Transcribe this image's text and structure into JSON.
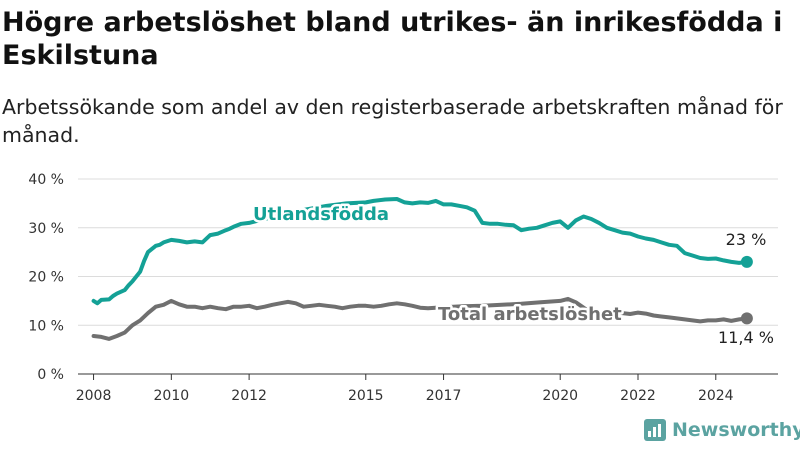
{
  "title": "Högre arbetslöshet bland utrikes- än inrikesfödda i Eskilstuna",
  "subtitle": "Arbetssökande som andel av den registerbaserade arbetskraften månad för månad.",
  "brand": "Newsworthy",
  "colors": {
    "utrikes": "#14a196",
    "total": "#707070",
    "brand": "#5ba3a1",
    "grid": "#dcdcdc"
  },
  "chart_data": {
    "type": "line",
    "x_unit": "year",
    "xlim": [
      2007.6,
      2025.6
    ],
    "ylim": [
      0,
      40
    ],
    "y_ticks": [
      {
        "v": 0,
        "label": "0 %"
      },
      {
        "v": 10,
        "label": "10 %"
      },
      {
        "v": 20,
        "label": "20 %"
      },
      {
        "v": 30,
        "label": "30 %"
      },
      {
        "v": 40,
        "label": "40 %"
      }
    ],
    "x_ticks": [
      {
        "v": 2008,
        "label": "2008"
      },
      {
        "v": 2010,
        "label": "2010"
      },
      {
        "v": 2012,
        "label": "2012"
      },
      {
        "v": 2015,
        "label": "2015"
      },
      {
        "v": 2017,
        "label": "2017"
      },
      {
        "v": 2020,
        "label": "2020"
      },
      {
        "v": 2022,
        "label": "2022"
      },
      {
        "v": 2024,
        "label": "2024"
      }
    ],
    "grid": true,
    "series": [
      {
        "name": "Utlandsfödda",
        "end_label": "23 %",
        "x": [
          2008.0,
          2008.1,
          2008.2,
          2008.4,
          2008.5,
          2008.6,
          2008.8,
          2008.9,
          2009.0,
          2009.2,
          2009.3,
          2009.4,
          2009.6,
          2009.7,
          2009.8,
          2010.0,
          2010.2,
          2010.4,
          2010.6,
          2010.8,
          2011.0,
          2011.2,
          2011.4,
          2011.5,
          2011.6,
          2011.8,
          2012.0,
          2012.5,
          2013.0,
          2013.5,
          2014.0,
          2014.5,
          2015.0,
          2015.2,
          2015.5,
          2015.8,
          2016.0,
          2016.2,
          2016.4,
          2016.6,
          2016.8,
          2017.0,
          2017.2,
          2017.4,
          2017.6,
          2017.8,
          2018.0,
          2018.2,
          2018.4,
          2018.6,
          2018.8,
          2019.0,
          2019.2,
          2019.4,
          2019.6,
          2019.8,
          2020.0,
          2020.2,
          2020.4,
          2020.6,
          2020.8,
          2021.0,
          2021.2,
          2021.4,
          2021.6,
          2021.8,
          2022.0,
          2022.2,
          2022.4,
          2022.6,
          2022.8,
          2023.0,
          2023.2,
          2023.4,
          2023.6,
          2023.8,
          2024.0,
          2024.2,
          2024.4,
          2024.6,
          2024.8
        ],
        "y": [
          15.0,
          14.5,
          15.2,
          15.3,
          16.0,
          16.5,
          17.2,
          18.2,
          19.0,
          21.0,
          23.2,
          25.0,
          26.3,
          26.5,
          27.0,
          27.5,
          27.3,
          27.0,
          27.2,
          27.0,
          28.5,
          28.8,
          29.5,
          29.8,
          30.2,
          30.8,
          31.0,
          32.0,
          33.0,
          33.8,
          34.5,
          35.0,
          35.2,
          35.5,
          35.8,
          35.9,
          35.2,
          35.0,
          35.2,
          35.1,
          35.5,
          34.8,
          34.8,
          34.5,
          34.2,
          33.5,
          31.0,
          30.8,
          30.8,
          30.6,
          30.5,
          29.5,
          29.8,
          30.0,
          30.5,
          31.0,
          31.3,
          30.0,
          31.5,
          32.3,
          31.8,
          31.0,
          30.0,
          29.5,
          29.0,
          28.8,
          28.2,
          27.8,
          27.5,
          27.0,
          26.5,
          26.3,
          24.8,
          24.3,
          23.8,
          23.6,
          23.7,
          23.3,
          23.0,
          22.8,
          23.0
        ]
      },
      {
        "name": "Total arbetslöshet",
        "end_label": "11,4 %",
        "x": [
          2008.0,
          2008.2,
          2008.4,
          2008.6,
          2008.8,
          2009.0,
          2009.2,
          2009.4,
          2009.6,
          2009.8,
          2010.0,
          2010.2,
          2010.4,
          2010.6,
          2010.8,
          2011.0,
          2011.2,
          2011.4,
          2011.6,
          2011.8,
          2012.0,
          2012.2,
          2012.4,
          2012.6,
          2012.8,
          2013.0,
          2013.2,
          2013.4,
          2013.6,
          2013.8,
          2014.0,
          2014.2,
          2014.4,
          2014.6,
          2014.8,
          2015.0,
          2015.2,
          2015.4,
          2015.6,
          2015.8,
          2016.0,
          2016.2,
          2016.4,
          2016.6,
          2017.0,
          2017.5,
          2018.0,
          2018.5,
          2019.0,
          2019.5,
          2020.0,
          2020.2,
          2020.4,
          2020.6,
          2020.8,
          2021.0,
          2021.2,
          2021.4,
          2021.6,
          2021.8,
          2022.0,
          2022.2,
          2022.4,
          2022.6,
          2022.8,
          2023.0,
          2023.2,
          2023.4,
          2023.6,
          2023.8,
          2024.0,
          2024.2,
          2024.4,
          2024.6,
          2024.8
        ],
        "y": [
          7.8,
          7.6,
          7.2,
          7.8,
          8.5,
          10.0,
          11.0,
          12.5,
          13.8,
          14.2,
          15.0,
          14.3,
          13.8,
          13.8,
          13.5,
          13.8,
          13.5,
          13.3,
          13.8,
          13.8,
          14.0,
          13.5,
          13.8,
          14.2,
          14.5,
          14.8,
          14.5,
          13.8,
          14.0,
          14.2,
          14.0,
          13.8,
          13.5,
          13.8,
          14.0,
          14.0,
          13.8,
          14.0,
          14.3,
          14.5,
          14.3,
          14.0,
          13.6,
          13.5,
          13.7,
          13.9,
          14.0,
          14.2,
          14.4,
          14.7,
          15.0,
          15.4,
          14.7,
          13.6,
          12.5,
          12.4,
          12.6,
          12.8,
          12.5,
          12.3,
          12.6,
          12.4,
          12.0,
          11.8,
          11.6,
          11.4,
          11.2,
          11.0,
          10.8,
          11.0,
          11.0,
          11.2,
          10.9,
          11.2,
          11.4
        ]
      }
    ]
  }
}
